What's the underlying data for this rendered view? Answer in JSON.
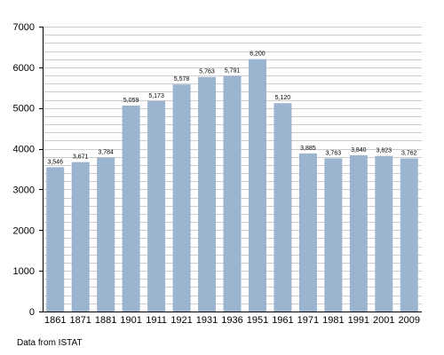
{
  "chart_data": {
    "type": "bar",
    "categories": [
      "1861",
      "1871",
      "1881",
      "1901",
      "1911",
      "1921",
      "1931",
      "1936",
      "1951",
      "1961",
      "1971",
      "1981",
      "1991",
      "2001",
      "2009"
    ],
    "values": [
      3546,
      3671,
      3784,
      5059,
      5173,
      5578,
      5763,
      5791,
      6200,
      5120,
      3885,
      3763,
      3840,
      3823,
      3762
    ],
    "data_labels": [
      "3,546",
      "3,671",
      "3,784",
      "5,059",
      "5,173",
      "5,578",
      "5,763",
      "5,791",
      "6,200",
      "5,120",
      "3,885",
      "3,763",
      "3,840",
      "3,823",
      "3,762"
    ],
    "ylim": [
      0,
      7000
    ],
    "yticks": [
      "0",
      "1000",
      "2000",
      "3000",
      "4000",
      "5000",
      "6000",
      "7000"
    ],
    "ytick_values": [
      0,
      1000,
      2000,
      3000,
      4000,
      5000,
      6000,
      7000
    ],
    "minor_step": 200,
    "grid": true,
    "bar_color": "#9bb4cf",
    "grid_color": "#cccccc",
    "source": "Data from ISTAT"
  }
}
